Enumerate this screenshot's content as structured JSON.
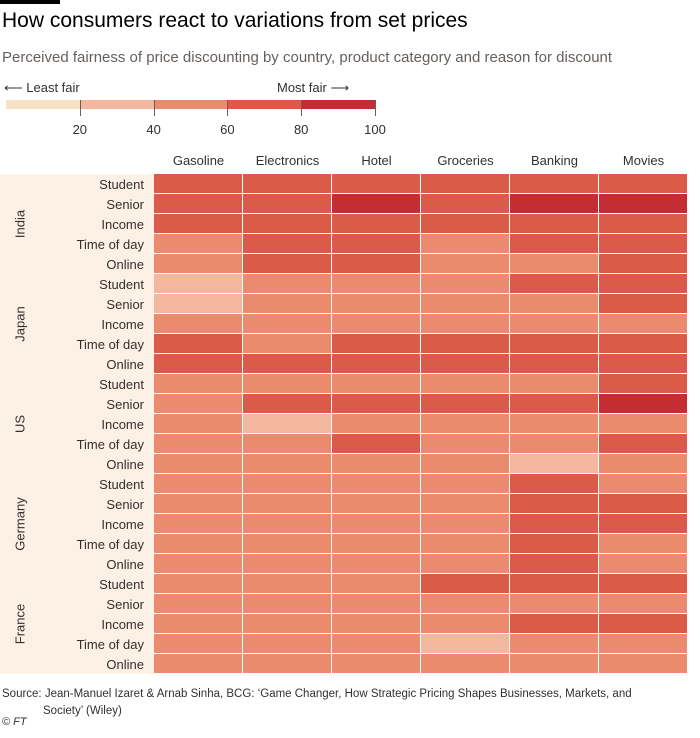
{
  "header": {
    "title": "How consumers react to variations from set prices",
    "subtitle": "Perceived fairness of price discounting by country, product category and reason for discount"
  },
  "legend": {
    "least_label": "Least fair",
    "most_label": "Most fair",
    "least_arrow": "⟵",
    "most_arrow": "⟶",
    "ticks": [
      "20",
      "40",
      "60",
      "80",
      "100"
    ],
    "bins": [
      {
        "from": 0,
        "to": 20,
        "color": "#f6e1c6"
      },
      {
        "from": 20,
        "to": 40,
        "color": "#f2b79e"
      },
      {
        "from": 40,
        "to": 60,
        "color": "#ea8b6d"
      },
      {
        "from": 60,
        "to": 80,
        "color": "#db5b49"
      },
      {
        "from": 80,
        "to": 100,
        "color": "#c22e34"
      }
    ]
  },
  "chart_data": {
    "type": "heatmap",
    "title": "How consumers react to variations from set prices",
    "subtitle": "Perceived fairness of price discounting by country, product category and reason for discount",
    "columns": [
      "Gasoline",
      "Electronics",
      "Hotel",
      "Groceries",
      "Banking",
      "Movies"
    ],
    "groups": [
      {
        "name": "India",
        "rows": [
          {
            "label": "Student",
            "values": [
              68,
              68,
              68,
              66,
              78,
              70
            ]
          },
          {
            "label": "Senior",
            "values": [
              66,
              66,
              84,
              66,
              80,
              82
            ]
          },
          {
            "label": "Income",
            "values": [
              66,
              66,
              66,
              64,
              68,
              68
            ]
          },
          {
            "label": "Time of day",
            "values": [
              54,
              66,
              64,
              54,
              64,
              66
            ]
          },
          {
            "label": "Online",
            "values": [
              56,
              62,
              72,
              58,
              56,
              70
            ]
          }
        ]
      },
      {
        "name": "Japan",
        "rows": [
          {
            "label": "Student",
            "values": [
              38,
              54,
              58,
              56,
              64,
              62
            ]
          },
          {
            "label": "Senior",
            "values": [
              34,
              52,
              56,
              56,
              56,
              66
            ]
          },
          {
            "label": "Income",
            "values": [
              48,
              54,
              56,
              56,
              58,
              56
            ]
          },
          {
            "label": "Time of day",
            "values": [
              64,
              56,
              64,
              62,
              62,
              64
            ]
          },
          {
            "label": "Online",
            "values": [
              68,
              66,
              64,
              64,
              62,
              66
            ]
          }
        ]
      },
      {
        "name": "US",
        "rows": [
          {
            "label": "Student",
            "values": [
              56,
              54,
              56,
              54,
              56,
              64
            ]
          },
          {
            "label": "Senior",
            "values": [
              56,
              64,
              64,
              62,
              62,
              82
            ]
          },
          {
            "label": "Income",
            "values": [
              52,
              34,
              54,
              56,
              54,
              54
            ]
          },
          {
            "label": "Time of day",
            "values": [
              40,
              56,
              66,
              56,
              54,
              64
            ]
          },
          {
            "label": "Online",
            "values": [
              52,
              54,
              56,
              56,
              34,
              56
            ]
          }
        ]
      },
      {
        "name": "Germany",
        "rows": [
          {
            "label": "Student",
            "values": [
              52,
              54,
              54,
              54,
              60,
              56
            ]
          },
          {
            "label": "Senior",
            "values": [
              52,
              54,
              54,
              56,
              64,
              60
            ]
          },
          {
            "label": "Income",
            "values": [
              42,
              54,
              54,
              56,
              66,
              66
            ]
          },
          {
            "label": "Time of day",
            "values": [
              42,
              54,
              54,
              56,
              66,
              54
            ]
          },
          {
            "label": "Online",
            "values": [
              42,
              52,
              54,
              54,
              60,
              54
            ]
          }
        ]
      },
      {
        "name": "France",
        "rows": [
          {
            "label": "Student",
            "values": [
              54,
              54,
              56,
              64,
              64,
              64
            ]
          },
          {
            "label": "Senior",
            "values": [
              42,
              54,
              56,
              56,
              58,
              58
            ]
          },
          {
            "label": "Income",
            "values": [
              54,
              54,
              56,
              58,
              64,
              64
            ]
          },
          {
            "label": "Time of day",
            "values": [
              40,
              40,
              54,
              36,
              58,
              56
            ]
          },
          {
            "label": "Online",
            "values": [
              42,
              56,
              54,
              54,
              58,
              56
            ]
          }
        ]
      }
    ]
  },
  "footer": {
    "source_line1": "Source: Jean-Manuel Izaret & Arnab Sinha, BCG: ‘Game Changer, How Strategic Pricing Shapes Businesses, Markets, and",
    "source_line2": "Society’ (Wiley)",
    "copyright": "© FT"
  }
}
